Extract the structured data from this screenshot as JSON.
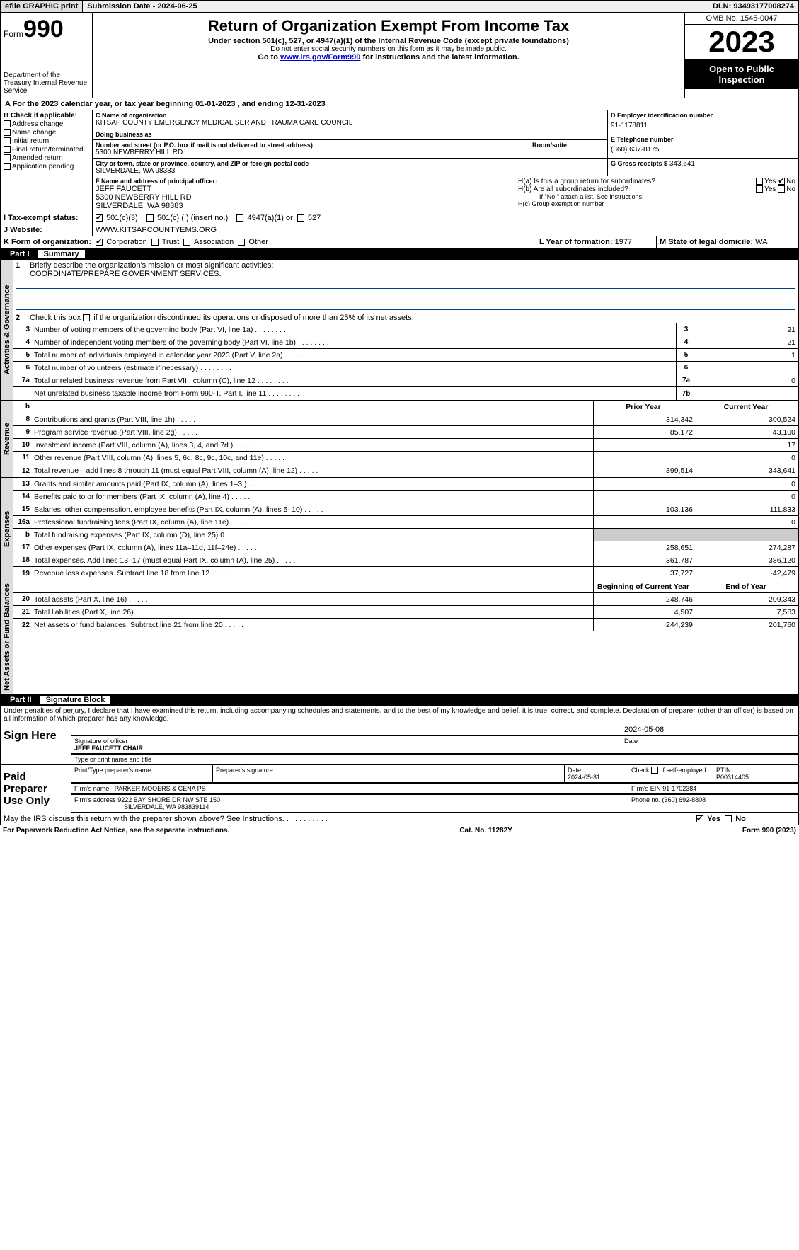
{
  "header": {
    "efile_btn": "efile GRAPHIC print",
    "submission": "Submission Date - 2024-06-25",
    "dln": "DLN: 93493177008274"
  },
  "top": {
    "form_label": "Form",
    "form_num": "990",
    "dept": "Department of the Treasury Internal Revenue Service",
    "title": "Return of Organization Exempt From Income Tax",
    "sub1": "Under section 501(c), 527, or 4947(a)(1) of the Internal Revenue Code (except private foundations)",
    "sub2": "Do not enter social security numbers on this form as it may be made public.",
    "sub3_pre": "Go to ",
    "sub3_link": "www.irs.gov/Form990",
    "sub3_post": " for instructions and the latest information.",
    "omb": "OMB No. 1545-0047",
    "year": "2023",
    "open": "Open to Public Inspection"
  },
  "row_a": "A For the 2023 calendar year, or tax year beginning 01-01-2023   , and ending 12-31-2023",
  "box_b": {
    "label": "B Check if applicable:",
    "items": [
      "Address change",
      "Name change",
      "Initial return",
      "Final return/terminated",
      "Amended return",
      "Application pending"
    ]
  },
  "box_c": {
    "name_lbl": "C Name of organization",
    "name": "KITSAP COUNTY EMERGENCY MEDICAL SER AND TRAUMA CARE COUNCIL",
    "dba_lbl": "Doing business as",
    "addr_lbl": "Number and street (or P.O. box if mail is not delivered to street address)",
    "addr": "5300 NEWBERRY HILL RD",
    "room_lbl": "Room/suite",
    "city_lbl": "City or town, state or province, country, and ZIP or foreign postal code",
    "city": "SILVERDALE, WA  98383"
  },
  "box_d": {
    "lbl": "D Employer identification number",
    "val": "91-1178811"
  },
  "box_e": {
    "lbl": "E Telephone number",
    "val": "(360) 637-8175"
  },
  "box_g": {
    "lbl": "G Gross receipts $",
    "val": "343,641"
  },
  "box_f": {
    "lbl": "F  Name and address of principal officer:",
    "name": "JEFF FAUCETT",
    "addr1": "5300 NEWBERRY HILL RD",
    "addr2": "SILVERDALE, WA  98383"
  },
  "box_h": {
    "a": "H(a)  Is this a group return for subordinates?",
    "b": "H(b)  Are all subordinates included?",
    "b2": "If \"No,\" attach a list. See instructions.",
    "c": "H(c)  Group exemption number",
    "yes": "Yes",
    "no": "No"
  },
  "row_i": {
    "lbl": "I   Tax-exempt status:",
    "o1": "501(c)(3)",
    "o2": "501(c) (  ) (insert no.)",
    "o3": "4947(a)(1) or",
    "o4": "527"
  },
  "row_j": {
    "lbl": "J   Website:",
    "val": "WWW.KITSAPCOUNTYEMS.ORG"
  },
  "row_k": {
    "lbl": "K Form of organization:",
    "o1": "Corporation",
    "o2": "Trust",
    "o3": "Association",
    "o4": "Other"
  },
  "row_l": {
    "lbl": "L Year of formation:",
    "val": "1977"
  },
  "row_m": {
    "lbl": "M State of legal domicile:",
    "val": "WA"
  },
  "part1": {
    "num": "Part I",
    "title": "Summary"
  },
  "summary": {
    "q1": "Briefly describe the organization's mission or most significant activities:",
    "mission": "COORDINATE/PREPARE GOVERNMENT SERVICES.",
    "q2": "Check this box      if the organization discontinued its operations or disposed of more than 25% of its net assets.",
    "sections": {
      "ag": "Activities & Governance",
      "rev": "Revenue",
      "exp": "Expenses",
      "na": "Net Assets or Fund Balances"
    },
    "hdr_prior": "Prior Year",
    "hdr_curr": "Current Year",
    "hdr_beg": "Beginning of Current Year",
    "hdr_end": "End of Year",
    "lines_ag": [
      {
        "n": "3",
        "t": "Number of voting members of the governing body (Part VI, line 1a)",
        "b": "3",
        "v": "21"
      },
      {
        "n": "4",
        "t": "Number of independent voting members of the governing body (Part VI, line 1b)",
        "b": "4",
        "v": "21"
      },
      {
        "n": "5",
        "t": "Total number of individuals employed in calendar year 2023 (Part V, line 2a)",
        "b": "5",
        "v": "1"
      },
      {
        "n": "6",
        "t": "Total number of volunteers (estimate if necessary)",
        "b": "6",
        "v": ""
      },
      {
        "n": "7a",
        "t": "Total unrelated business revenue from Part VIII, column (C), line 12",
        "b": "7a",
        "v": "0"
      },
      {
        "n": "",
        "t": "Net unrelated business taxable income from Form 990-T, Part I, line 11",
        "b": "7b",
        "v": ""
      }
    ],
    "lines_rev": [
      {
        "n": "8",
        "t": "Contributions and grants (Part VIII, line 1h)",
        "p": "314,342",
        "c": "300,524"
      },
      {
        "n": "9",
        "t": "Program service revenue (Part VIII, line 2g)",
        "p": "85,172",
        "c": "43,100"
      },
      {
        "n": "10",
        "t": "Investment income (Part VIII, column (A), lines 3, 4, and 7d )",
        "p": "",
        "c": "17"
      },
      {
        "n": "11",
        "t": "Other revenue (Part VIII, column (A), lines 5, 6d, 8c, 9c, 10c, and 11e)",
        "p": "",
        "c": "0"
      },
      {
        "n": "12",
        "t": "Total revenue—add lines 8 through 11 (must equal Part VIII, column (A), line 12)",
        "p": "399,514",
        "c": "343,641"
      }
    ],
    "lines_exp": [
      {
        "n": "13",
        "t": "Grants and similar amounts paid (Part IX, column (A), lines 1–3 )",
        "p": "",
        "c": "0"
      },
      {
        "n": "14",
        "t": "Benefits paid to or for members (Part IX, column (A), line 4)",
        "p": "",
        "c": "0"
      },
      {
        "n": "15",
        "t": "Salaries, other compensation, employee benefits (Part IX, column (A), lines 5–10)",
        "p": "103,136",
        "c": "111,833"
      },
      {
        "n": "16a",
        "t": "Professional fundraising fees (Part IX, column (A), line 11e)",
        "p": "",
        "c": "0"
      },
      {
        "n": "b",
        "t": "Total fundraising expenses (Part IX, column (D), line 25) 0",
        "p": "GREY",
        "c": "GREY"
      },
      {
        "n": "17",
        "t": "Other expenses (Part IX, column (A), lines 11a–11d, 11f–24e)",
        "p": "258,651",
        "c": "274,287"
      },
      {
        "n": "18",
        "t": "Total expenses. Add lines 13–17 (must equal Part IX, column (A), line 25)",
        "p": "361,787",
        "c": "386,120"
      },
      {
        "n": "19",
        "t": "Revenue less expenses. Subtract line 18 from line 12",
        "p": "37,727",
        "c": "-42,479"
      }
    ],
    "lines_na": [
      {
        "n": "20",
        "t": "Total assets (Part X, line 16)",
        "p": "248,746",
        "c": "209,343"
      },
      {
        "n": "21",
        "t": "Total liabilities (Part X, line 26)",
        "p": "4,507",
        "c": "7,583"
      },
      {
        "n": "22",
        "t": "Net assets or fund balances. Subtract line 21 from line 20",
        "p": "244,239",
        "c": "201,760"
      }
    ]
  },
  "part2": {
    "num": "Part II",
    "title": "Signature Block"
  },
  "sig": {
    "perjury": "Under penalties of perjury, I declare that I have examined this return, including accompanying schedules and statements, and to the best of my knowledge and belief, it is true, correct, and complete. Declaration of preparer (other than officer) is based on all information of which preparer has any knowledge.",
    "sign_here": "Sign Here",
    "sig_officer_lbl": "Signature of officer",
    "sig_officer": "JEFF FAUCETT CHAIR",
    "sig_name_lbl": "Type or print name and title",
    "date_lbl": "Date",
    "date1": "2024-05-08",
    "paid": "Paid Preparer Use Only",
    "prep_name_lbl": "Print/Type preparer's name",
    "prep_sig_lbl": "Preparer's signature",
    "date2_lbl": "Date",
    "date2": "2024-05-31",
    "chk_self": "Check       if self-employed",
    "ptin_lbl": "PTIN",
    "ptin": "P00314405",
    "firm_name_lbl": "Firm's name",
    "firm_name": "PARKER MOOERS & CENA PS",
    "firm_ein_lbl": "Firm's EIN",
    "firm_ein": "91-1702384",
    "firm_addr_lbl": "Firm's address",
    "firm_addr1": "9222 BAY SHORE DR NW STE 150",
    "firm_addr2": "SILVERDALE, WA  983839114",
    "phone_lbl": "Phone no.",
    "phone": "(360) 692-8808",
    "discuss": "May the IRS discuss this return with the preparer shown above? See Instructions."
  },
  "footer": {
    "pra": "For Paperwork Reduction Act Notice, see the separate instructions.",
    "cat": "Cat. No. 11282Y",
    "form": "Form 990 (2023)"
  },
  "style": {
    "link_color": "#0000cc",
    "mission_line_color": "#004080",
    "grey_fill": "#cccccc",
    "header_bg": "#000000"
  }
}
